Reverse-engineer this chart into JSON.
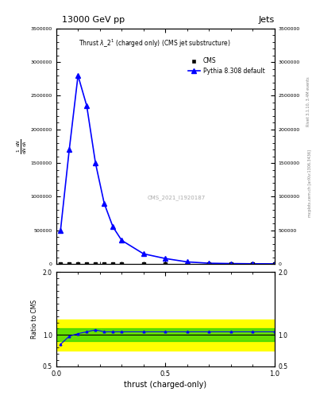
{
  "title_top": "13000 GeV pp",
  "title_right": "Jets",
  "plot_title": "Thrust $\\lambda\\_2^1$ (charged only) (CMS jet substructure)",
  "xlabel": "thrust (charged-only)",
  "ylabel": "$\\frac{1}{\\mathrm{d}N}\\frac{\\mathrm{d}N}{\\mathrm{d}\\lambda}$",
  "cms_label": "CMS",
  "pythia_label": "Pythia 8.308 default",
  "watermark": "CMS_2021_I1920187",
  "right_label1": "Rivet 3.1.10, 3.4M events",
  "right_label2": "mcplots.cern.ch [arXiv:1306.3436]",
  "pythia_x": [
    0.02,
    0.06,
    0.1,
    0.14,
    0.18,
    0.22,
    0.26,
    0.3,
    0.4,
    0.5,
    0.6,
    0.7,
    0.8,
    0.9,
    1.0
  ],
  "pythia_y": [
    500000,
    1700000,
    2800000,
    2350000,
    1500000,
    900000,
    550000,
    350000,
    150000,
    80000,
    30000,
    10000,
    5000,
    2000,
    1000
  ],
  "cms_x": [
    0.02,
    0.06,
    0.1,
    0.14,
    0.18,
    0.22,
    0.26,
    0.3,
    0.4,
    0.5,
    0.6,
    0.7,
    0.8,
    0.9,
    1.0
  ],
  "cms_y": [
    100,
    100,
    100,
    100,
    100,
    100,
    100,
    100,
    100,
    100,
    100,
    100,
    100,
    100,
    100
  ],
  "ylim_main": [
    0,
    3500000
  ],
  "yticks_main": [
    0,
    500000,
    1000000,
    1500000,
    2000000,
    2500000,
    3000000,
    3500000
  ],
  "ytick_labels_main": [
    "0",
    "500000",
    "1000000",
    "1500000",
    "2000000",
    "2500000",
    "3000000",
    "3500000"
  ],
  "xlim": [
    0.0,
    1.0
  ],
  "xticks": [
    0.0,
    0.5,
    1.0
  ],
  "ratio_ylim": [
    0.5,
    2.0
  ],
  "ratio_yticks": [
    0.5,
    1.0,
    2.0
  ],
  "ratio_green_band": [
    0.9,
    1.1
  ],
  "ratio_yellow_band": [
    0.75,
    1.25
  ],
  "blue_color": "#0000FF",
  "black_color": "#000000",
  "green_color": "#00CC00",
  "yellow_color": "#FFFF00",
  "grey_color": "#AAAAAA"
}
